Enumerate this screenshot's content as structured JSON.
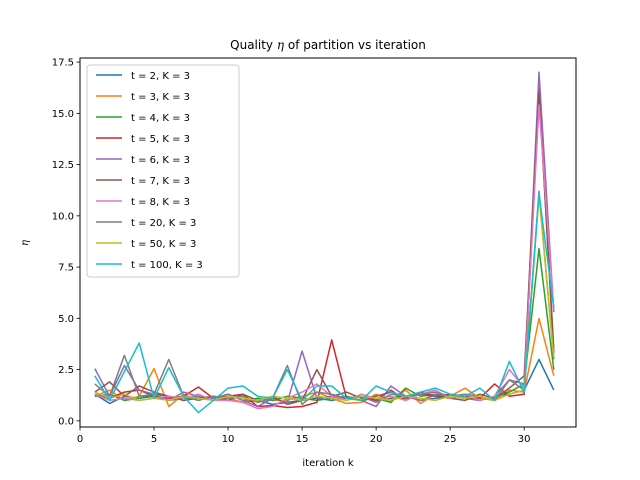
{
  "chart_data": {
    "type": "line",
    "title_prefix": "Quality ",
    "title_symbol": "η",
    "title_suffix": " of partition vs iteration",
    "xlabel": "iteration k",
    "ylabel": "η",
    "xlim": [
      0,
      33.5
    ],
    "ylim": [
      -0.3,
      17.7
    ],
    "xticks": [
      0,
      5,
      10,
      15,
      20,
      25,
      30
    ],
    "yticks": [
      0.0,
      2.5,
      5.0,
      7.5,
      10.0,
      12.5,
      15.0,
      17.5
    ],
    "xtick_labels": [
      "0",
      "5",
      "10",
      "15",
      "20",
      "25",
      "30"
    ],
    "ytick_labels": [
      "0.0",
      "2.5",
      "5.0",
      "7.5",
      "10.0",
      "12.5",
      "15.0",
      "17.5"
    ],
    "grid": false,
    "legend_position": "upper-left",
    "x": [
      1,
      2,
      3,
      4,
      5,
      6,
      7,
      8,
      9,
      10,
      11,
      12,
      13,
      14,
      15,
      16,
      17,
      18,
      19,
      20,
      21,
      22,
      23,
      24,
      25,
      26,
      27,
      28,
      29,
      30,
      31,
      32
    ],
    "series": [
      {
        "name": "t = 2, K = 3",
        "color": "#1f77b4",
        "values": [
          1.3,
          0.85,
          1.2,
          1.1,
          1.2,
          1.0,
          1.1,
          1.2,
          1.0,
          1.1,
          0.9,
          1.0,
          0.8,
          0.9,
          1.0,
          1.1,
          1.0,
          1.1,
          1.2,
          1.0,
          1.1,
          1.2,
          1.0,
          1.1,
          1.2,
          1.1,
          1.0,
          1.2,
          1.3,
          1.5,
          3.0,
          1.5
        ]
      },
      {
        "name": "t = 3, K = 3",
        "color": "#ff7f0e",
        "values": [
          1.2,
          1.5,
          1.0,
          1.2,
          2.55,
          0.7,
          1.3,
          1.0,
          1.2,
          1.1,
          0.9,
          1.1,
          1.0,
          1.0,
          1.2,
          1.4,
          1.1,
          0.85,
          0.9,
          1.3,
          1.0,
          1.5,
          0.85,
          1.3,
          1.2,
          1.6,
          1.1,
          1.0,
          1.5,
          1.4,
          5.0,
          2.2
        ]
      },
      {
        "name": "t = 4, K = 3",
        "color": "#2ca02c",
        "values": [
          1.2,
          1.3,
          1.0,
          1.1,
          1.3,
          1.2,
          1.0,
          1.2,
          1.1,
          1.3,
          1.0,
          1.1,
          1.0,
          1.2,
          1.1,
          1.0,
          1.1,
          1.2,
          1.0,
          1.1,
          0.9,
          1.6,
          1.2,
          1.3,
          1.1,
          1.2,
          1.0,
          1.2,
          1.4,
          1.8,
          8.4,
          2.5
        ]
      },
      {
        "name": "t = 5, K = 3",
        "color": "#d62728",
        "values": [
          1.3,
          1.1,
          1.4,
          1.5,
          1.2,
          1.1,
          1.2,
          1.65,
          1.1,
          1.2,
          1.3,
          0.7,
          0.75,
          0.65,
          0.7,
          0.9,
          3.95,
          1.1,
          1.2,
          1.0,
          1.5,
          1.0,
          1.4,
          1.2,
          1.3,
          1.2,
          1.1,
          1.8,
          1.2,
          1.3,
          16.2,
          3.3
        ]
      },
      {
        "name": "t = 6, K = 3",
        "color": "#9467bd",
        "values": [
          2.55,
          1.2,
          2.7,
          1.5,
          1.3,
          1.0,
          1.4,
          1.2,
          1.1,
          1.3,
          1.0,
          0.7,
          1.1,
          0.9,
          3.4,
          1.1,
          1.2,
          1.1,
          1.0,
          0.7,
          1.7,
          1.2,
          1.0,
          1.3,
          1.2,
          1.1,
          1.0,
          1.2,
          2.0,
          1.8,
          17.0,
          5.3
        ]
      },
      {
        "name": "t = 7, K = 3",
        "color": "#8c564b",
        "values": [
          1.4,
          1.9,
          1.2,
          1.7,
          1.4,
          1.2,
          1.0,
          1.1,
          1.2,
          1.0,
          1.3,
          1.0,
          1.2,
          0.8,
          1.0,
          2.5,
          1.2,
          1.4,
          1.1,
          1.2,
          1.4,
          1.1,
          1.3,
          1.2,
          1.1,
          1.0,
          1.3,
          1.1,
          1.6,
          2.2,
          16.0,
          3.5
        ]
      },
      {
        "name": "t = 8, K = 3",
        "color": "#e377c2",
        "values": [
          1.3,
          1.0,
          1.1,
          1.0,
          1.1,
          1.2,
          1.1,
          1.3,
          1.0,
          1.0,
          0.9,
          0.6,
          0.7,
          1.1,
          1.4,
          1.8,
          1.2,
          1.0,
          1.3,
          1.1,
          1.2,
          1.0,
          1.3,
          1.5,
          1.1,
          1.3,
          1.0,
          1.2,
          2.5,
          1.6,
          15.4,
          5.4
        ]
      },
      {
        "name": "t = 20, K = 3",
        "color": "#7f7f7f",
        "values": [
          1.8,
          1.2,
          3.2,
          1.2,
          1.3,
          3.0,
          1.2,
          1.0,
          1.2,
          1.1,
          1.2,
          0.9,
          1.1,
          2.7,
          0.8,
          1.4,
          1.3,
          1.1,
          1.2,
          0.9,
          1.3,
          1.2,
          1.3,
          1.4,
          1.2,
          1.3,
          1.2,
          1.0,
          2.0,
          1.5,
          11.2,
          3.0
        ]
      },
      {
        "name": "t = 50, K = 3",
        "color": "#bcbd22",
        "values": [
          1.4,
          1.1,
          1.3,
          1.0,
          1.1,
          1.0,
          1.2,
          1.1,
          1.0,
          1.2,
          1.1,
          1.0,
          1.2,
          1.1,
          1.0,
          1.2,
          1.1,
          1.0,
          1.2,
          1.1,
          1.0,
          1.2,
          1.1,
          1.0,
          1.2,
          1.1,
          1.2,
          1.0,
          1.3,
          1.5,
          11.0,
          3.1
        ]
      },
      {
        "name": "t = 100, K = 3",
        "color": "#17becf",
        "values": [
          2.2,
          1.0,
          2.4,
          3.8,
          1.1,
          2.6,
          1.2,
          0.4,
          1.0,
          1.6,
          1.7,
          1.2,
          1.1,
          2.5,
          1.0,
          1.7,
          1.7,
          1.1,
          1.0,
          1.7,
          1.4,
          1.2,
          1.4,
          1.6,
          1.3,
          1.2,
          1.6,
          1.0,
          2.9,
          1.4,
          11.1,
          5.5
        ]
      }
    ]
  }
}
